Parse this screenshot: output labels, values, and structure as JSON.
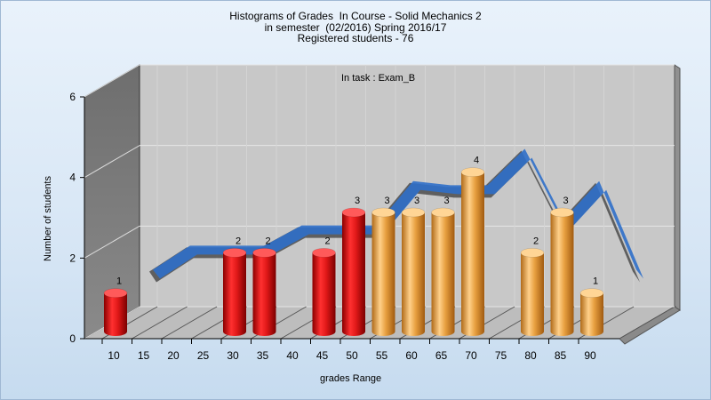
{
  "chart_data": {
    "type": "bar",
    "title_lines": [
      "Histograms of Grades  In Course - Solid Mechanics 2",
      "in semester  (02/2016) Spring 2016/17",
      "Registered students - 76"
    ],
    "annotation": "In task : Exam_B",
    "xlabel": "grades Range",
    "ylabel": "Number of students",
    "ylim": [
      0,
      6
    ],
    "y_ticks": [
      0,
      2,
      4,
      6
    ],
    "x_tick_labels": [
      "10",
      "15",
      "20",
      "25",
      "30",
      "35",
      "40",
      "45",
      "50",
      "55",
      "60",
      "65",
      "70",
      "75",
      "80",
      "85",
      "90"
    ],
    "bars": [
      {
        "x": 10,
        "value": 1,
        "color": "red"
      },
      {
        "x": 30,
        "value": 2,
        "color": "red"
      },
      {
        "x": 35,
        "value": 2,
        "color": "red"
      },
      {
        "x": 45,
        "value": 2,
        "color": "red"
      },
      {
        "x": 50,
        "value": 3,
        "color": "red"
      },
      {
        "x": 55,
        "value": 3,
        "color": "orange"
      },
      {
        "x": 60,
        "value": 3,
        "color": "orange"
      },
      {
        "x": 65,
        "value": 3,
        "color": "orange"
      },
      {
        "x": 70,
        "value": 4,
        "color": "orange"
      },
      {
        "x": 80,
        "value": 2,
        "color": "orange"
      },
      {
        "x": 85,
        "value": 3,
        "color": "orange"
      },
      {
        "x": 90,
        "value": 1,
        "color": "orange"
      }
    ],
    "trend_ribbon": [
      1.4,
      2.0,
      2.0,
      2.0,
      2.5,
      2.5,
      2.5,
      3.6,
      3.5,
      3.5,
      4.4,
      2.6,
      3.6,
      1.4
    ],
    "grid": true,
    "colors": {
      "red": "#e01818",
      "orange": "#e8a040",
      "ribbon_front": "#2f6fc9",
      "ribbon_back": "#5a5a5a"
    }
  }
}
